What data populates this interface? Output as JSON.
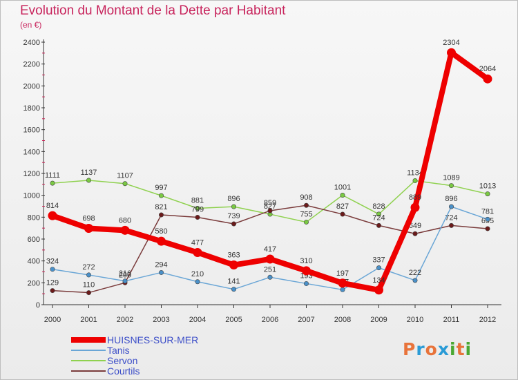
{
  "title": "Evolution du Montant de la Dette par Habitant",
  "subtitle": "(en €)",
  "logo": {
    "text": "Proxiti",
    "colors": [
      "#e8733a",
      "#2a9bd6",
      "#e8733a",
      "#2a9bd6",
      "#4aa832",
      "#e8733a",
      "#4aa832"
    ]
  },
  "chart_data": {
    "type": "line",
    "title": "Evolution du Montant de la Dette par Habitant",
    "subtitle": "(en €)",
    "x": [
      "2000",
      "2001",
      "2002",
      "2003",
      "2004",
      "2005",
      "2006",
      "2007",
      "2008",
      "2009",
      "2010",
      "2011",
      "2012"
    ],
    "ylim": [
      0,
      2400
    ],
    "yticks": [
      0,
      200,
      400,
      600,
      800,
      1000,
      1200,
      1400,
      1600,
      1800,
      2000,
      2200,
      2400
    ],
    "grid": false,
    "legend": "bottom-left",
    "series": [
      {
        "name": "Servon",
        "color": "#8fd14f",
        "marker": "#7ac943",
        "values": [
          1111,
          1137,
          1107,
          997,
          881,
          896,
          827,
          755,
          1001,
          828,
          1134,
          1089,
          1013
        ]
      },
      {
        "name": "Courtils",
        "color": "#7a3b3b",
        "marker": "#6b1a1a",
        "values": [
          129,
          110,
          200,
          821,
          799,
          739,
          859,
          908,
          827,
          724,
          649,
          724,
          695
        ]
      },
      {
        "name": "Tanis",
        "color": "#6aa6d6",
        "marker": "#4a90c8",
        "values": [
          324,
          272,
          216,
          294,
          210,
          141,
          251,
          193,
          137,
          337,
          222,
          896,
          781
        ]
      },
      {
        "name": "HUISNES-SUR-MER",
        "color": "#ee0000",
        "marker": "#ee0000",
        "values": [
          814,
          698,
          680,
          580,
          477,
          363,
          417,
          310,
          197,
          134,
          889,
          2304,
          2064
        ]
      }
    ]
  }
}
